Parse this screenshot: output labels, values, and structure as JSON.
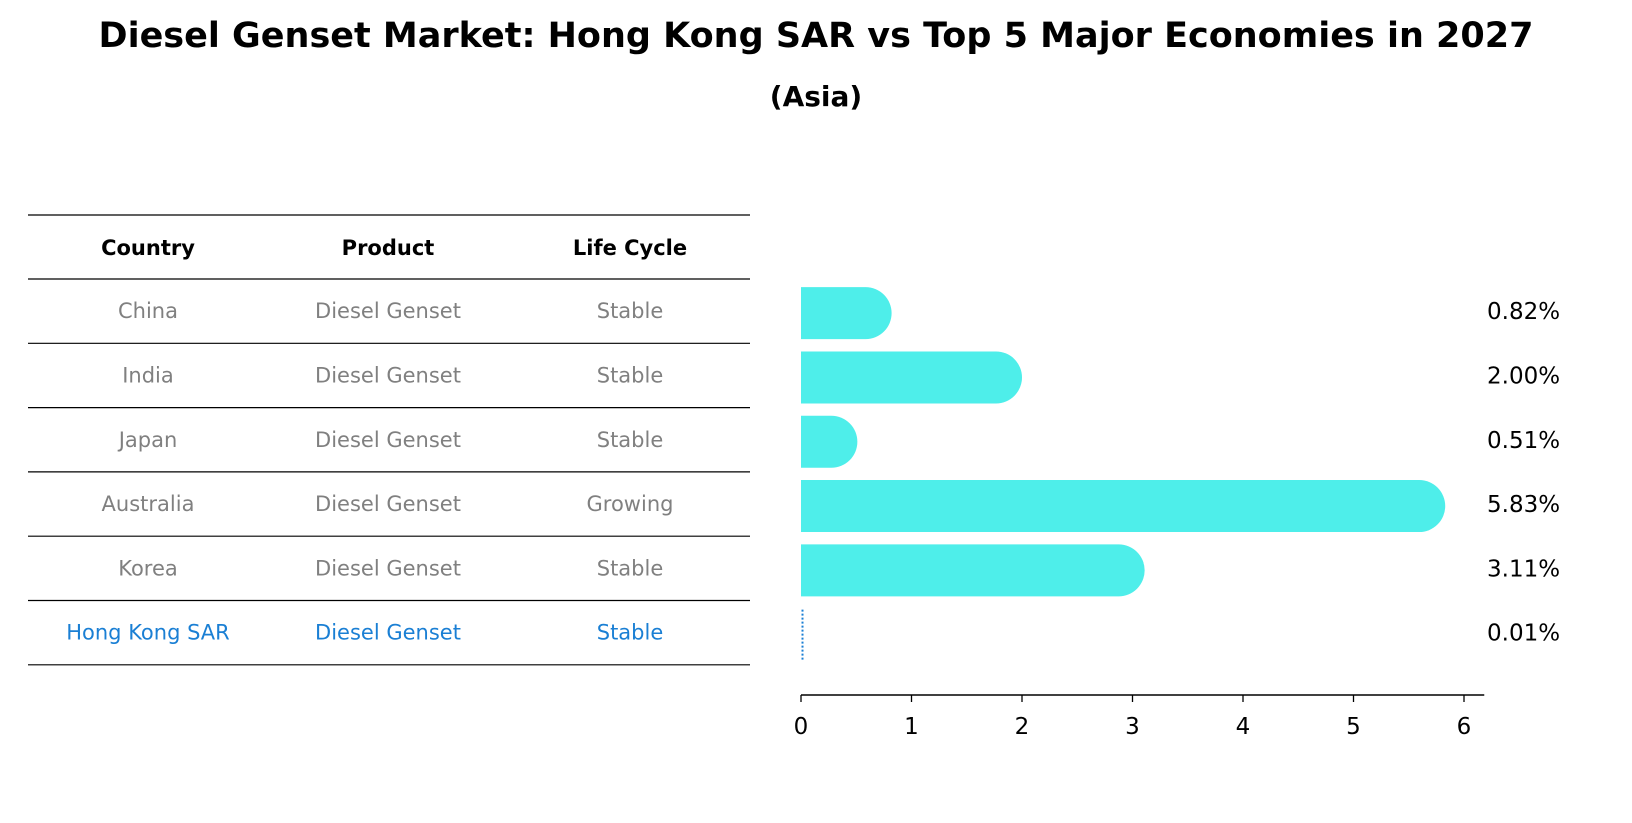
{
  "title": "Diesel Genset Market: Hong Kong SAR vs Top 5 Major Economies in 2027",
  "subtitle": "(Asia)",
  "table": {
    "headers": [
      "Country",
      "Product",
      "Life Cycle"
    ],
    "rows": [
      {
        "country": "China",
        "product": "Diesel Genset",
        "life_cycle": "Stable",
        "highlight": false
      },
      {
        "country": "India",
        "product": "Diesel Genset",
        "life_cycle": "Stable",
        "highlight": false
      },
      {
        "country": "Japan",
        "product": "Diesel Genset",
        "life_cycle": "Stable",
        "highlight": false
      },
      {
        "country": "Australia",
        "product": "Diesel Genset",
        "life_cycle": "Growing",
        "highlight": false
      },
      {
        "country": "Korea",
        "product": "Diesel Genset",
        "life_cycle": "Stable",
        "highlight": false
      },
      {
        "country": "Hong Kong SAR",
        "product": "Diesel Genset",
        "life_cycle": "Stable",
        "highlight": true
      }
    ]
  },
  "colors": {
    "bar": "#4EEEEA",
    "highlight_text": "#1A7FD4",
    "muted_text": "#808080",
    "axis": "#000000"
  },
  "chart_data": {
    "type": "bar",
    "orientation": "horizontal",
    "categories": [
      "China",
      "India",
      "Japan",
      "Australia",
      "Korea",
      "Hong Kong SAR"
    ],
    "values": [
      0.82,
      2.0,
      0.51,
      5.83,
      3.11,
      0.01
    ],
    "value_labels": [
      "0.82%",
      "2.00%",
      "0.51%",
      "5.83%",
      "3.11%",
      "0.01%"
    ],
    "xlim": [
      0,
      6.12
    ],
    "xticks": [
      0,
      1,
      2,
      3,
      4,
      5,
      6
    ],
    "xtick_labels": [
      "0",
      "1",
      "2",
      "3",
      "4",
      "5",
      "6"
    ],
    "xlabel": "",
    "ylabel": "",
    "grid": false,
    "legend": false
  }
}
